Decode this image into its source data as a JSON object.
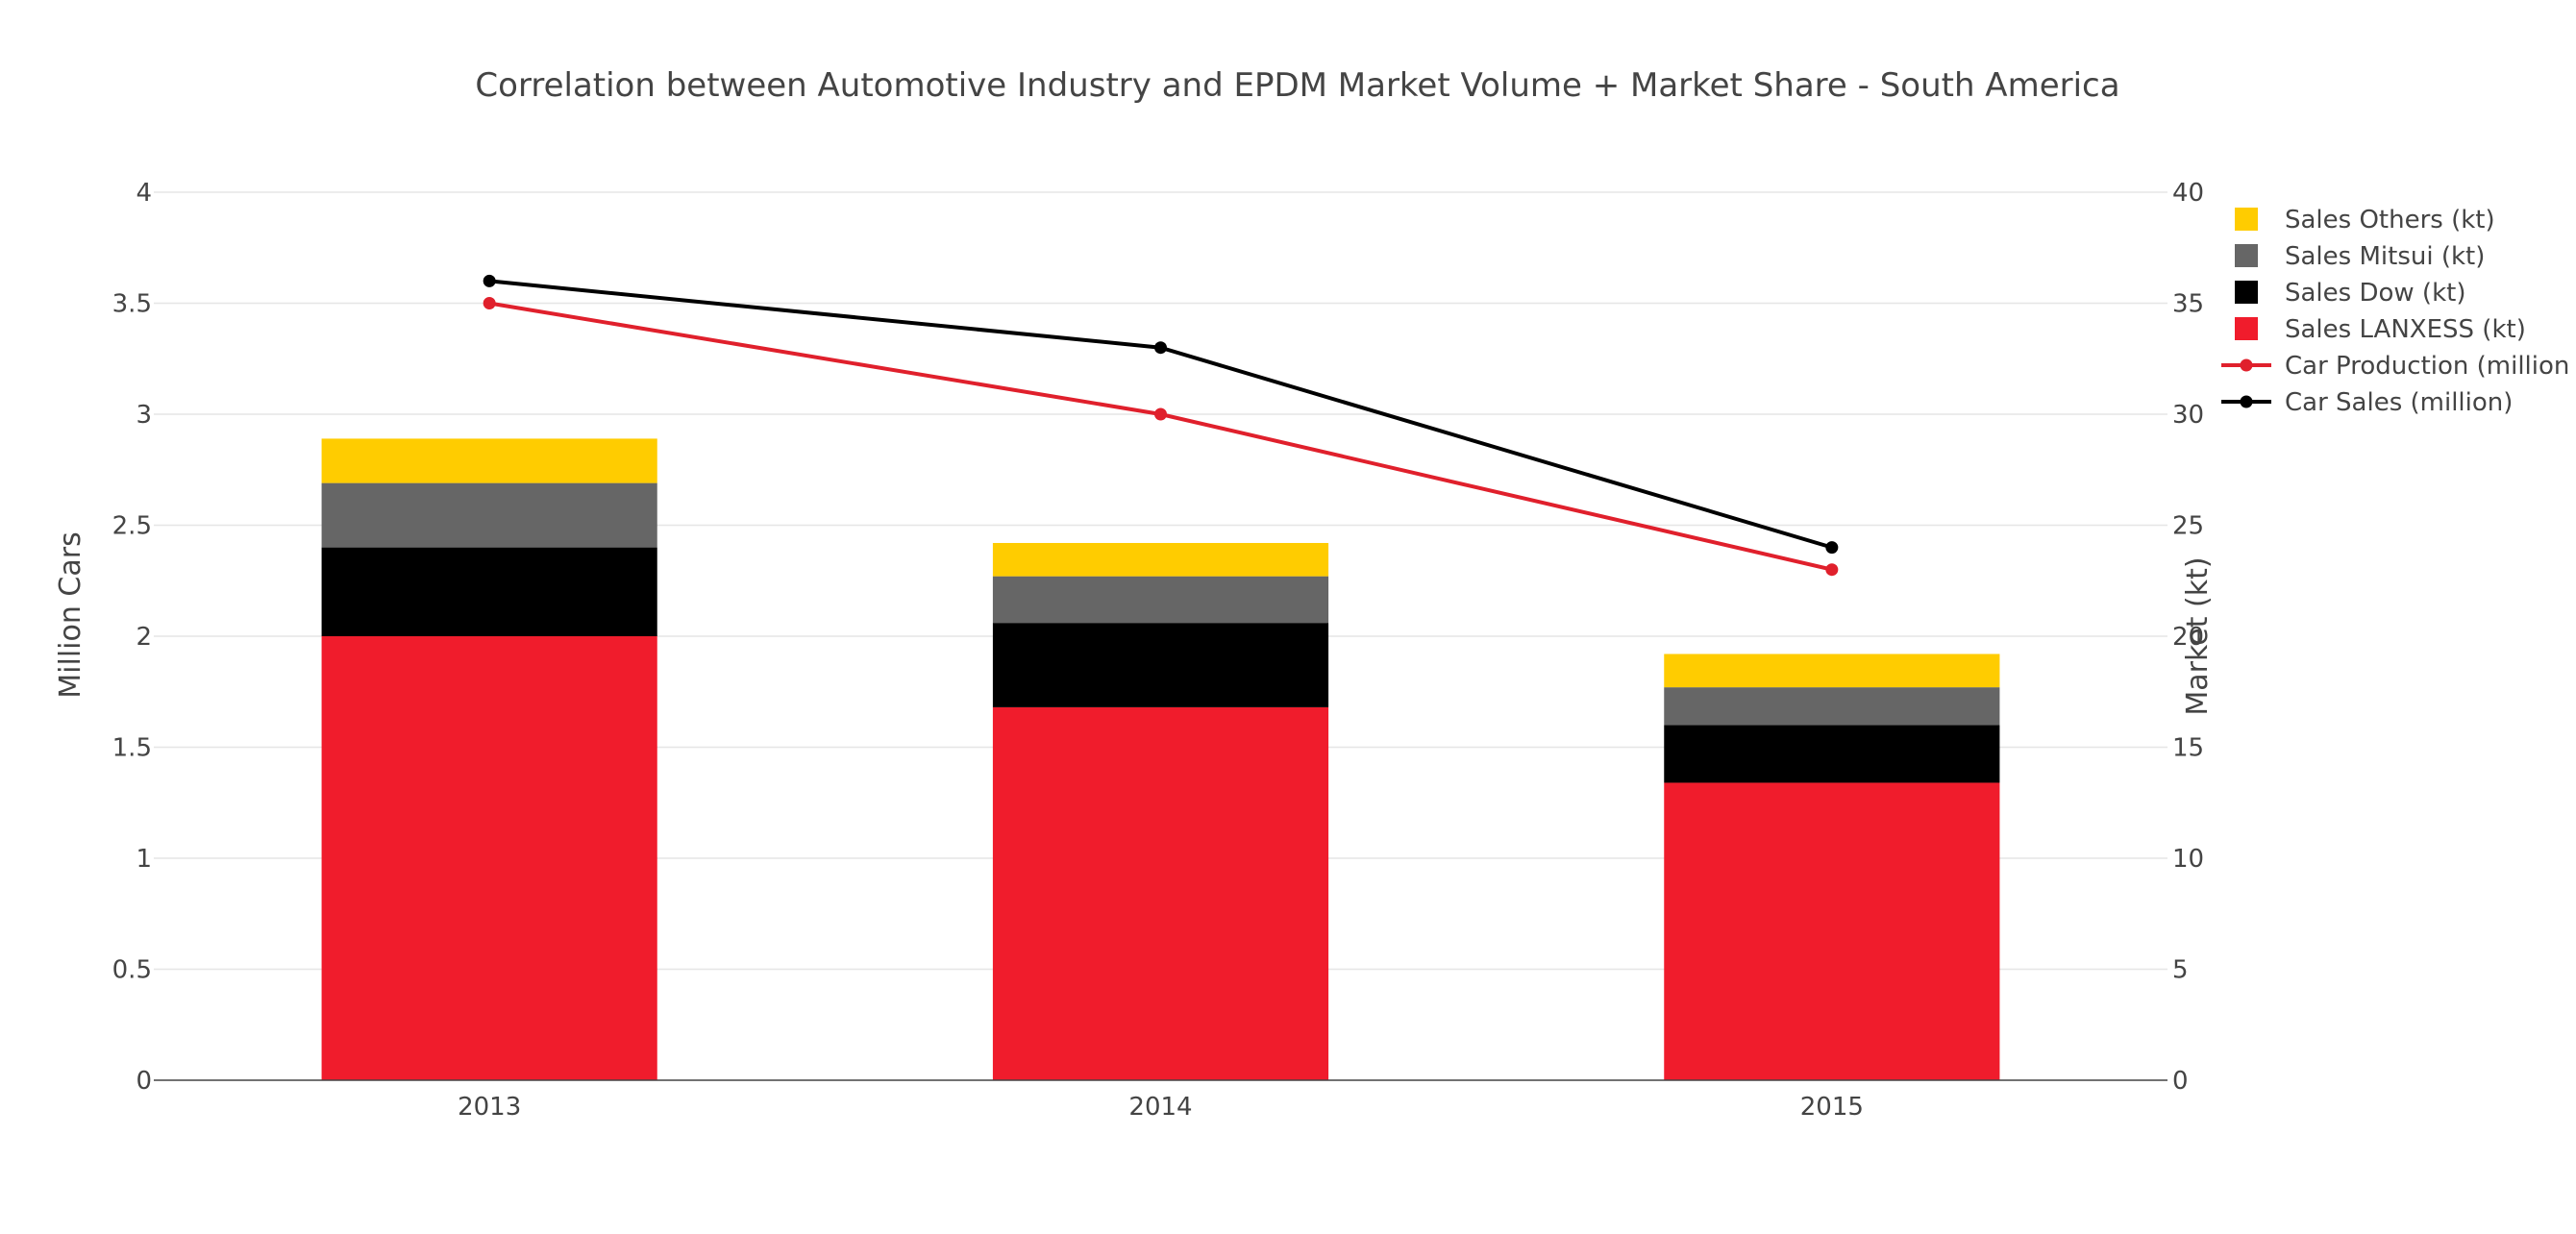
{
  "chart_data": {
    "type": "bar",
    "title": "Correlation between Automotive Industry and EPDM Market Volume + Market Share - South America",
    "categories": [
      "2013",
      "2014",
      "2015"
    ],
    "xlabel": "",
    "ylabel": "Million Cars",
    "y2label": "Market (kt)",
    "ylim": [
      0,
      4
    ],
    "y2lim": [
      0,
      40
    ],
    "yticks": [
      "0",
      "0.5",
      "1",
      "1.5",
      "2",
      "2.5",
      "3",
      "3.5",
      "4"
    ],
    "y2ticks": [
      "0",
      "5",
      "10",
      "15",
      "20",
      "25",
      "30",
      "35",
      "40"
    ],
    "grid": true,
    "legend_position": "right",
    "bar_series": [
      {
        "name": "Sales LANXESS (kt)",
        "color": "#f01c2c",
        "axis": "y2",
        "values": [
          20,
          16.8,
          13.4
        ]
      },
      {
        "name": "Sales Dow (kt)",
        "color": "#000000",
        "axis": "y2",
        "values": [
          4,
          3.8,
          2.6
        ]
      },
      {
        "name": "Sales Mitsui (kt)",
        "color": "#666666",
        "axis": "y2",
        "values": [
          2.9,
          2.1,
          1.7
        ]
      },
      {
        "name": "Sales Others (kt)",
        "color": "#ffcc00",
        "axis": "y2",
        "values": [
          2,
          1.5,
          1.5
        ]
      }
    ],
    "line_series": [
      {
        "name": "Car Production (million",
        "color": "#e0202c",
        "axis": "y",
        "values": [
          3.5,
          3.0,
          2.3
        ]
      },
      {
        "name": "Car Sales (million)",
        "color": "#000000",
        "axis": "y",
        "values": [
          3.6,
          3.3,
          2.4
        ]
      }
    ],
    "legend_order": [
      "Sales Others (kt)",
      "Sales Mitsui (kt)",
      "Sales Dow (kt)",
      "Sales LANXESS (kt)",
      "Car Production (million",
      "Car Sales (million)"
    ]
  }
}
